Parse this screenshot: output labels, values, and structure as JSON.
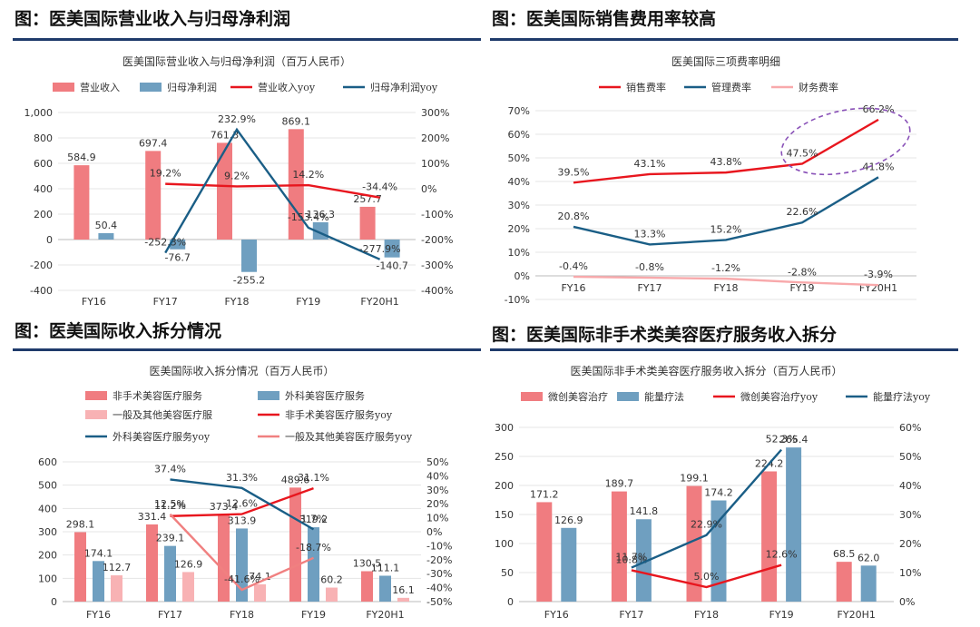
{
  "panels": {
    "p1": {
      "title": "图：医美国际营业收入与归母净利润"
    },
    "p2": {
      "title": "图：医美国际销售费用率较高"
    },
    "p3": {
      "title": "图：医美国际收入拆分情况"
    },
    "p4": {
      "title": "图：医美国际非手术类美容医疗服务收入拆分"
    }
  },
  "colors": {
    "rule": "#1f3b6b",
    "pink": "#f07c80",
    "blue": "#6f9fc0",
    "lightpink": "#f8b2b4",
    "red": "#e8161e",
    "navy": "#1a5e86"
  },
  "chart_data": [
    {
      "type": "bar",
      "title": "医美国际营业收入与归母净利润（百万人民币）",
      "categories": [
        "FY16",
        "FY17",
        "FY18",
        "FY19",
        "FY20H1"
      ],
      "ylim": [
        -400,
        1000
      ],
      "yticks": [
        "1,000",
        "800",
        "600",
        "400",
        "200",
        "0",
        "-200",
        "-400"
      ],
      "y2lim": [
        -400,
        300
      ],
      "y2ticks": [
        "300%",
        "200%",
        "100%",
        "0%",
        "-100%",
        "-200%",
        "-300%",
        "-400%"
      ],
      "series": [
        {
          "name": "营业收入",
          "kind": "bar",
          "axis": "left",
          "color": "#f07c80",
          "values": [
            584.9,
            697.4,
            761.3,
            869.1,
            257.7
          ],
          "labels": [
            "584.9",
            "697.4",
            "761.3",
            "869.1",
            "257.7"
          ]
        },
        {
          "name": "归母净利润",
          "kind": "bar",
          "axis": "left",
          "color": "#6f9fc0",
          "values": [
            50.4,
            -76.7,
            -255.2,
            136.3,
            -140.7
          ],
          "labels": [
            "50.4",
            "-76.7",
            "-255.2",
            "136.3",
            "-140.7"
          ]
        },
        {
          "name": "营业收入yoy",
          "kind": "line",
          "axis": "right",
          "color": "#e8161e",
          "values": [
            null,
            19.2,
            9.2,
            14.2,
            -34.4
          ],
          "labels": [
            "",
            "19.2%",
            "9.2%",
            "14.2%",
            "-34.4%"
          ]
        },
        {
          "name": "归母净利润yoy",
          "kind": "line",
          "axis": "right",
          "color": "#1a5e86",
          "values": [
            null,
            -252.3,
            232.9,
            -153.4,
            -277.9
          ],
          "labels": [
            "",
            "-252.3%",
            "232.9%",
            "-153.4%",
            "-277.9%"
          ]
        }
      ]
    },
    {
      "type": "line",
      "title": "医美国际三项费率明细",
      "categories": [
        "FY16",
        "FY17",
        "FY18",
        "FY19",
        "FY20H1"
      ],
      "ylim": [
        -10,
        70
      ],
      "yticks": [
        "70%",
        "60%",
        "50%",
        "40%",
        "30%",
        "20%",
        "10%",
        "0%",
        "-10%"
      ],
      "series": [
        {
          "name": "销售费率",
          "color": "#e8161e",
          "values": [
            39.5,
            43.1,
            43.8,
            47.5,
            66.2
          ],
          "labels": [
            "39.5%",
            "43.1%",
            "43.8%",
            "47.5%",
            "66.2%"
          ]
        },
        {
          "name": "管理费率",
          "color": "#1a5e86",
          "values": [
            20.8,
            13.3,
            15.2,
            22.6,
            41.8
          ],
          "labels": [
            "20.8%",
            "13.3%",
            "15.2%",
            "22.6%",
            "41.8%"
          ]
        },
        {
          "name": "财务费率",
          "color": "#f8a9ab",
          "values": [
            -0.4,
            -0.8,
            -1.2,
            -2.8,
            -3.9
          ],
          "labels": [
            "-0.4%",
            "-0.8%",
            "-1.2%",
            "-2.8%",
            "-3.9%"
          ]
        }
      ]
    },
    {
      "type": "bar",
      "title": "医美国际收入拆分情况（百万人民币）",
      "categories": [
        "FY16",
        "FY17",
        "FY18",
        "FY19",
        "FY20H1"
      ],
      "ylim": [
        0,
        600
      ],
      "yticks": [
        "600",
        "500",
        "400",
        "300",
        "200",
        "100",
        "0"
      ],
      "y2lim": [
        -50,
        50
      ],
      "y2ticks": [
        "50%",
        "40%",
        "30%",
        "20%",
        "10%",
        "0%",
        "-10%",
        "-20%",
        "-30%",
        "-40%",
        "-50%"
      ],
      "series": [
        {
          "name": "非手术美容医疗服务",
          "kind": "bar",
          "axis": "left",
          "color": "#f07c80",
          "values": [
            298.1,
            331.4,
            373.4,
            489.6,
            130.5
          ],
          "labels": [
            "298.1",
            "331.4",
            "373.4",
            "489.6",
            "130.5"
          ]
        },
        {
          "name": "外科美容医疗服务",
          "kind": "bar",
          "axis": "left",
          "color": "#6f9fc0",
          "values": [
            174.1,
            239.1,
            313.9,
            319.2,
            111.1
          ],
          "labels": [
            "174.1",
            "239.1",
            "313.9",
            "319.2",
            "111.1"
          ]
        },
        {
          "name": "一般及其他美容医疗服",
          "kind": "bar",
          "axis": "left",
          "color": "#f8b2b4",
          "values": [
            112.7,
            126.9,
            74.1,
            60.2,
            16.1
          ],
          "labels": [
            "112.7",
            "126.9",
            "74.1",
            "60.2",
            "16.1"
          ]
        },
        {
          "name": "非手术美容医疗服务yoy",
          "kind": "line",
          "axis": "right",
          "color": "#e8161e",
          "values": [
            null,
            11.2,
            12.6,
            31.1,
            null
          ],
          "labels": [
            "",
            "11.2%",
            "12.6%",
            "31.1%",
            ""
          ]
        },
        {
          "name": "外科美容医疗服务yoy",
          "kind": "line",
          "axis": "right",
          "color": "#1a5e86",
          "values": [
            null,
            37.4,
            31.3,
            1.7,
            null
          ],
          "labels": [
            "",
            "37.4%",
            "31.3%",
            "1.7%",
            ""
          ]
        },
        {
          "name": "一般及其他美容医疗服务yoy",
          "kind": "line",
          "axis": "right",
          "color": "#f08080",
          "values": [
            null,
            12.5,
            -41.6,
            -18.7,
            null
          ],
          "labels": [
            "",
            "12.5%",
            "-41.6%",
            "-18.7%",
            ""
          ]
        }
      ]
    },
    {
      "type": "bar",
      "title": "医美国际非手术类美容医疗服务收入拆分（百万人民币）",
      "categories": [
        "FY16",
        "FY17",
        "FY18",
        "FY19",
        "FY20H1"
      ],
      "ylim": [
        0,
        300
      ],
      "yticks": [
        "300",
        "250",
        "200",
        "150",
        "100",
        "50",
        "0"
      ],
      "y2lim": [
        0,
        60
      ],
      "y2ticks": [
        "60%",
        "50%",
        "40%",
        "30%",
        "20%",
        "10%",
        "0%"
      ],
      "series": [
        {
          "name": "微创美容治疗",
          "kind": "bar",
          "axis": "left",
          "color": "#f07c80",
          "values": [
            171.2,
            189.7,
            199.1,
            224.2,
            68.5
          ],
          "labels": [
            "171.2",
            "189.7",
            "199.1",
            "224.2",
            "68.5"
          ]
        },
        {
          "name": "能量疗法",
          "kind": "bar",
          "axis": "left",
          "color": "#6f9fc0",
          "values": [
            126.9,
            141.8,
            174.2,
            265.4,
            62.0
          ],
          "labels": [
            "126.9",
            "141.8",
            "174.2",
            "265.4",
            "62.0"
          ]
        },
        {
          "name": "微创美容治疗yoy",
          "kind": "line",
          "axis": "right",
          "color": "#e8161e",
          "values": [
            null,
            10.8,
            5.0,
            12.6,
            null
          ],
          "labels": [
            "",
            "10.8%",
            "5.0%",
            "12.6%",
            ""
          ]
        },
        {
          "name": "能量疗法yoy",
          "kind": "line",
          "axis": "right",
          "color": "#1a5e86",
          "values": [
            null,
            11.7,
            22.9,
            52.3,
            null
          ],
          "labels": [
            "",
            "11.7%",
            "22.9%",
            "52.3%",
            ""
          ]
        }
      ]
    }
  ]
}
